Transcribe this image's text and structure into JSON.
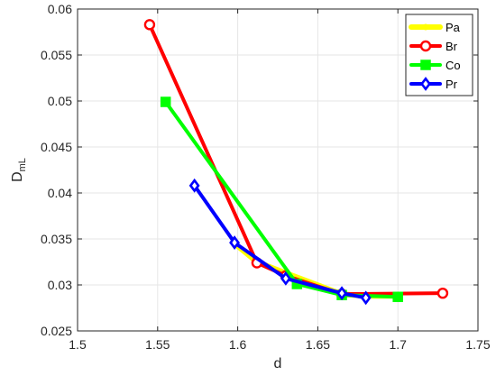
{
  "chart_data": {
    "type": "line",
    "xlabel": "d",
    "ylabel_main": "D",
    "ylabel_sub": "mL",
    "xlim": [
      1.5,
      1.75
    ],
    "ylim": [
      0.025,
      0.06
    ],
    "grid": true,
    "legend_position": "top-right",
    "x_ticks": [
      1.5,
      1.55,
      1.6,
      1.65,
      1.7,
      1.75
    ],
    "x_tick_labels": [
      "1.5",
      "1.55",
      "1.6",
      "1.65",
      "1.7",
      "1.75"
    ],
    "y_ticks": [
      0.025,
      0.03,
      0.035,
      0.04,
      0.045,
      0.05,
      0.055,
      0.06
    ],
    "y_tick_labels": [
      "0.025",
      "0.03",
      "0.035",
      "0.04",
      "0.045",
      "0.05",
      "0.055",
      "0.06"
    ],
    "series": [
      {
        "name": "Pa",
        "color": "#ffff00",
        "marker": "dot",
        "x": [
          1.598,
          1.612,
          1.63,
          1.665,
          1.68,
          1.7
        ],
        "y": [
          0.0345,
          0.0325,
          0.0313,
          0.029,
          0.0288,
          0.0288
        ]
      },
      {
        "name": "Br",
        "color": "#ff0000",
        "marker": "circle",
        "x": [
          1.545,
          1.612,
          1.63,
          1.665,
          1.728
        ],
        "y": [
          0.0583,
          0.0324,
          0.031,
          0.029,
          0.0291
        ]
      },
      {
        "name": "Co",
        "color": "#00ff00",
        "marker": "square",
        "x": [
          1.555,
          1.637,
          1.665,
          1.7
        ],
        "y": [
          0.0499,
          0.0301,
          0.0289,
          0.0287
        ]
      },
      {
        "name": "Pr",
        "color": "#0000ff",
        "marker": "diamond",
        "x": [
          1.573,
          1.598,
          1.63,
          1.665,
          1.68
        ],
        "y": [
          0.0408,
          0.0346,
          0.0307,
          0.0291,
          0.0286
        ]
      }
    ]
  }
}
